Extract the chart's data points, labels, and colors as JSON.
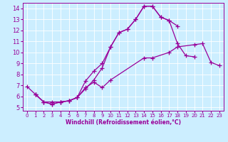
{
  "xlabel": "Windchill (Refroidissement éolien,°C)",
  "bg_color": "#cceeff",
  "line_color": "#990099",
  "xlim": [
    -0.5,
    23.5
  ],
  "ylim": [
    4.7,
    14.5
  ],
  "xticks": [
    0,
    1,
    2,
    3,
    4,
    5,
    6,
    7,
    8,
    9,
    10,
    11,
    12,
    13,
    14,
    15,
    16,
    17,
    18,
    19,
    20,
    21,
    22,
    23
  ],
  "yticks": [
    5,
    6,
    7,
    8,
    9,
    10,
    11,
    12,
    13,
    14
  ],
  "series": [
    {
      "x": [
        1,
        2,
        3,
        4,
        5,
        6,
        7,
        8,
        9,
        10,
        11,
        12,
        13,
        14,
        15,
        16,
        17,
        18
      ],
      "y": [
        6.2,
        5.5,
        5.3,
        5.5,
        5.6,
        5.9,
        7.4,
        8.3,
        9.0,
        10.5,
        11.8,
        12.1,
        13.0,
        14.2,
        14.2,
        13.2,
        12.9,
        12.4
      ]
    },
    {
      "x": [
        0,
        1,
        2,
        3,
        4,
        5,
        6,
        7,
        8,
        9,
        10,
        11,
        12,
        13,
        14,
        15,
        16,
        17,
        18,
        19,
        20
      ],
      "y": [
        6.9,
        6.2,
        5.5,
        5.3,
        5.5,
        5.6,
        5.9,
        6.7,
        7.5,
        8.6,
        10.5,
        11.8,
        12.1,
        13.0,
        14.2,
        14.2,
        13.2,
        12.9,
        10.8,
        9.7,
        9.6
      ]
    },
    {
      "x": [
        1,
        2,
        3,
        4,
        5,
        6,
        7,
        8,
        9,
        10,
        14,
        15,
        17,
        18,
        20,
        21,
        22,
        23
      ],
      "y": [
        6.2,
        5.5,
        5.5,
        5.5,
        5.6,
        5.9,
        6.8,
        7.3,
        6.8,
        7.5,
        9.5,
        9.5,
        10.0,
        10.5,
        10.7,
        10.8,
        9.1,
        8.8
      ]
    }
  ]
}
